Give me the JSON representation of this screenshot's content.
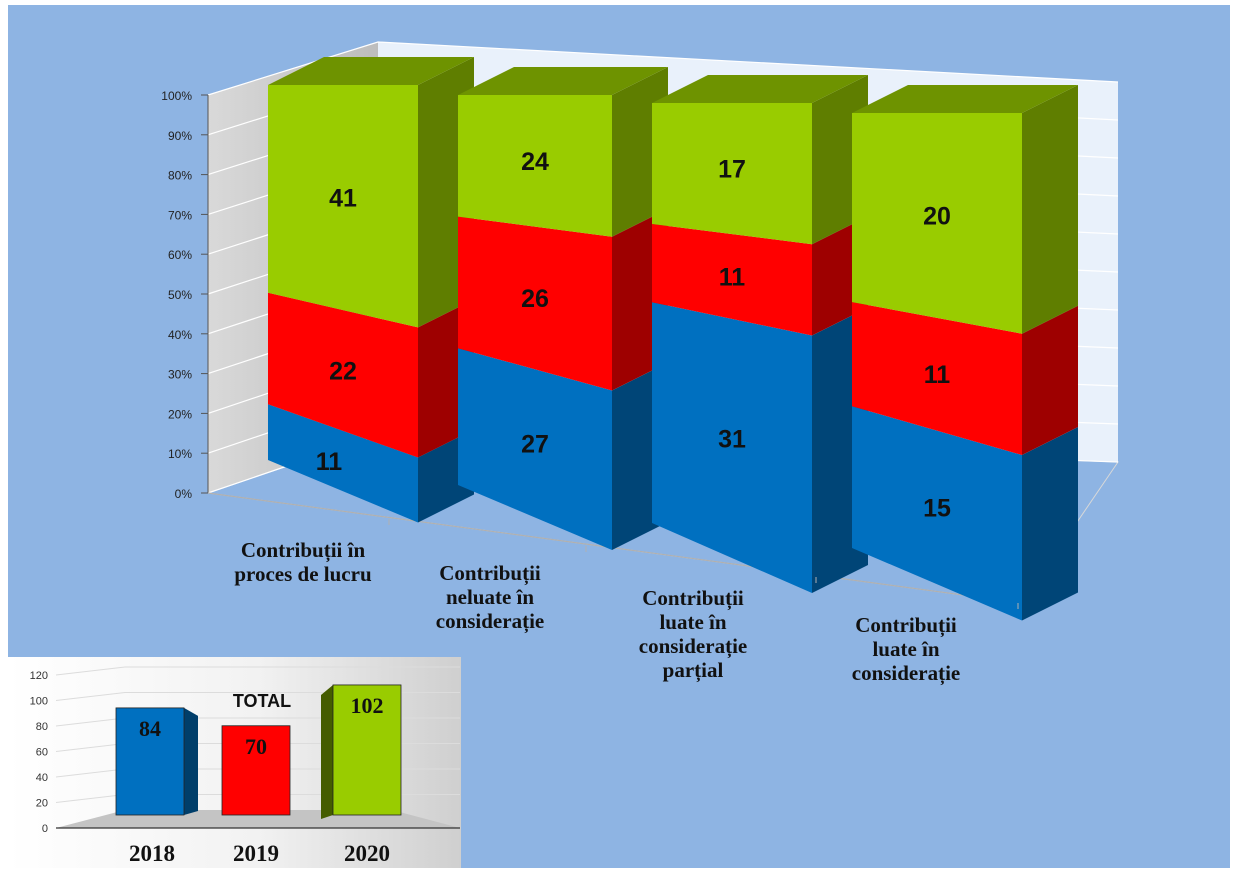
{
  "colors": {
    "background": "#8eb4e3",
    "blue": "#0070c0",
    "red": "#ff0000",
    "green": "#99cc00"
  },
  "chart_data": [
    {
      "type": "bar",
      "stacked": true,
      "percent_stacked": true,
      "three_d": true,
      "title": "",
      "categories": [
        [
          "Contribuții în",
          "proces de lucru"
        ],
        [
          "Contribuții",
          "neluate în",
          "considerație"
        ],
        [
          "Contribuții",
          "luate în",
          "considerație",
          "parțial"
        ],
        [
          "Contribuții",
          "luate în",
          "considerație"
        ]
      ],
      "series": [
        {
          "color": "#0070c0",
          "values": [
            11,
            27,
            31,
            15
          ]
        },
        {
          "color": "#ff0000",
          "values": [
            22,
            26,
            11,
            11
          ]
        },
        {
          "color": "#99cc00",
          "values": [
            41,
            24,
            17,
            20
          ]
        }
      ],
      "y_ticks": [
        "0%",
        "10%",
        "20%",
        "30%",
        "40%",
        "50%",
        "60%",
        "70%",
        "80%",
        "90%",
        "100%"
      ],
      "ylim": [
        0,
        100
      ],
      "grid": true,
      "legend": "none"
    },
    {
      "type": "bar",
      "three_d": true,
      "title": "TOTAL",
      "categories": [
        "2018",
        "2019",
        "2020"
      ],
      "values": [
        84,
        70,
        102
      ],
      "colors": [
        "#0070c0",
        "#ff0000",
        "#99cc00"
      ],
      "y_ticks": [
        "0",
        "20",
        "40",
        "60",
        "80",
        "100",
        "120"
      ],
      "ylim": [
        0,
        120
      ],
      "grid": true,
      "legend": "none"
    }
  ]
}
